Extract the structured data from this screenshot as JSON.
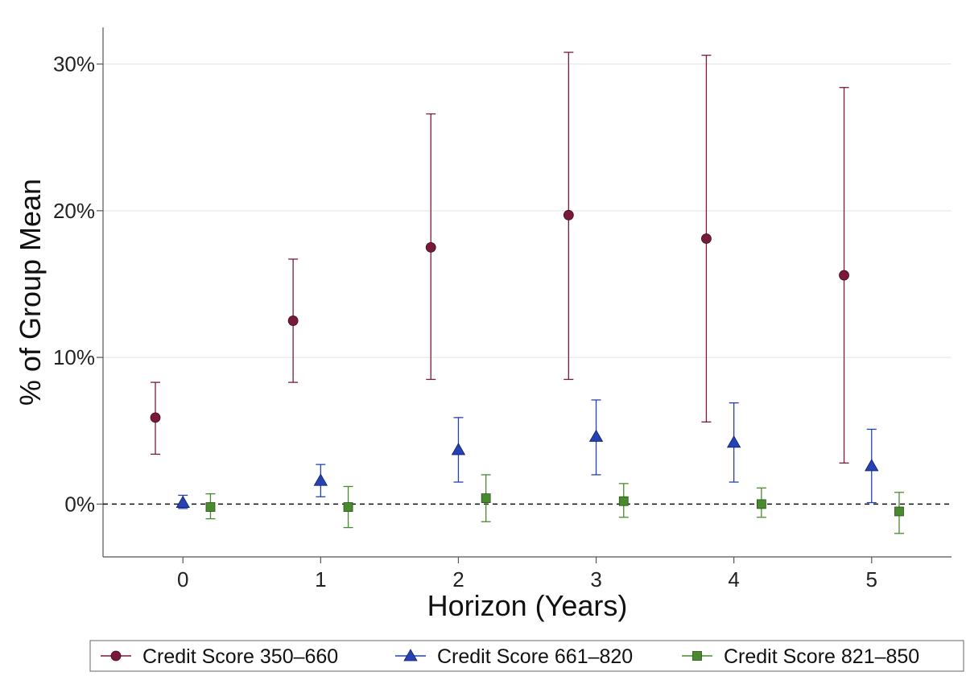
{
  "chart_data": {
    "type": "scatter",
    "xlabel": "Horizon (Years)",
    "ylabel": "% of Group Mean",
    "x_ticks": [
      "0",
      "1",
      "2",
      "3",
      "4",
      "5"
    ],
    "y_ticks": [
      "0%",
      "10%",
      "20%",
      "30%"
    ],
    "xlim": [
      -0.58,
      5.58
    ],
    "ylim": [
      -3.6,
      32.5
    ],
    "grid": "horizontal",
    "reference_line": 0,
    "legend_position": "bottom",
    "series": [
      {
        "name": "Credit Score 350–660",
        "color": "#7a1a3a",
        "marker": "circle",
        "x": [
          -0.2,
          0.8,
          1.8,
          2.8,
          3.8,
          4.8
        ],
        "y": [
          5.9,
          12.5,
          17.5,
          19.7,
          18.1,
          15.6
        ],
        "ci_low": [
          3.4,
          8.3,
          8.5,
          8.5,
          5.6,
          2.8
        ],
        "ci_high": [
          8.3,
          16.7,
          26.6,
          30.8,
          30.6,
          28.4
        ]
      },
      {
        "name": "Credit Score 661–820",
        "color": "#2541b2",
        "marker": "triangle",
        "x": [
          0,
          1,
          2,
          3,
          4,
          5
        ],
        "y": [
          0.1,
          1.6,
          3.7,
          4.6,
          4.2,
          2.6
        ],
        "ci_low": [
          -0.3,
          0.5,
          1.5,
          2.0,
          1.5,
          0.1
        ],
        "ci_high": [
          0.6,
          2.7,
          5.9,
          7.1,
          6.9,
          5.1
        ]
      },
      {
        "name": "Credit Score 821–850",
        "color": "#4a8a2e",
        "marker": "square",
        "x": [
          0.2,
          1.2,
          2.2,
          3.2,
          4.2,
          5.2
        ],
        "y": [
          -0.2,
          -0.2,
          0.4,
          0.2,
          0.0,
          -0.5
        ],
        "ci_low": [
          -1.0,
          -1.6,
          -1.2,
          -0.9,
          -0.9,
          -2.0
        ],
        "ci_high": [
          0.7,
          1.2,
          2.0,
          1.4,
          1.1,
          0.8
        ]
      }
    ]
  }
}
